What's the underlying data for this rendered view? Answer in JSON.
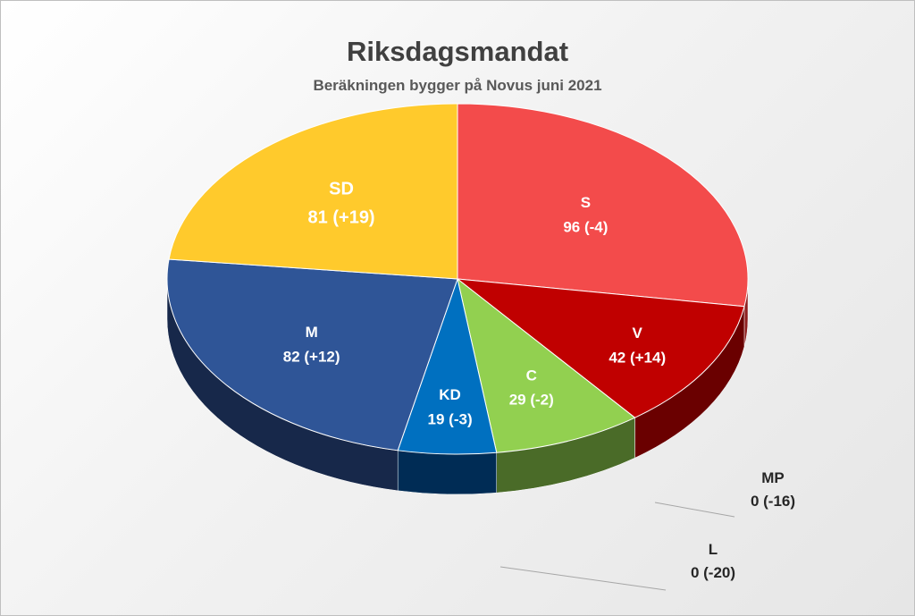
{
  "chart_data": {
    "type": "pie",
    "title": "Riksdagsmandat",
    "subtitle": "Beräkningen bygger på Novus juni 2021",
    "slices": [
      {
        "name": "S",
        "value": 96,
        "change": "(-4)",
        "display": "96 (-4)",
        "color": "#F34B4B",
        "side_color": "#8E2020"
      },
      {
        "name": "V",
        "value": 42,
        "change": "(+14)",
        "display": "42 (+14)",
        "color": "#C00000",
        "side_color": "#6A0000"
      },
      {
        "name": "MP",
        "value": 0,
        "change": "(-16)",
        "display": "0 (-16)",
        "color": "#4E8F2E",
        "side_color": "#2E5A1A"
      },
      {
        "name": "C",
        "value": 29,
        "change": "(-2)",
        "display": "29 (-2)",
        "color": "#92D050",
        "side_color": "#4A6B28"
      },
      {
        "name": "L",
        "value": 0,
        "change": "(-20)",
        "display": "0 (-20)",
        "color": "#1E73BE",
        "side_color": "#103C66"
      },
      {
        "name": "KD",
        "value": 19,
        "change": "(-3)",
        "display": "19 (-3)",
        "color": "#0070C0",
        "side_color": "#002C55"
      },
      {
        "name": "M",
        "value": 82,
        "change": "(+12)",
        "display": "82 (+12)",
        "color": "#2F5597",
        "side_color": "#17284A"
      },
      {
        "name": "SD",
        "value": 81,
        "change": "(+19)",
        "display": "81 (+19)",
        "color": "#FFCA2C",
        "side_color": "#8A6B10"
      }
    ],
    "legend": "none",
    "three_d": true
  }
}
